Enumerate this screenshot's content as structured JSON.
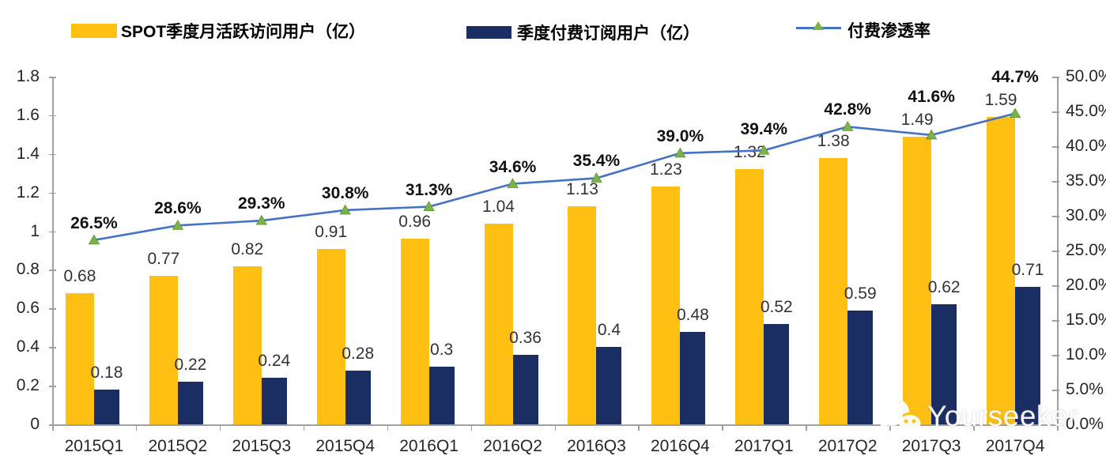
{
  "legend": {
    "items": [
      {
        "label": "SPOT季度月活跃访问用户（亿）",
        "type": "bar",
        "color": "#FFC013"
      },
      {
        "label": "季度付费订阅用户（亿）",
        "type": "bar",
        "color": "#1B2E63"
      },
      {
        "label": "付费渗透率",
        "type": "line",
        "color": "#4472C4",
        "marker_color": "#7CB347"
      }
    ]
  },
  "chart_data": {
    "type": "combo-bar-line",
    "categories": [
      "2015Q1",
      "2015Q2",
      "2015Q3",
      "2015Q4",
      "2016Q1",
      "2016Q2",
      "2016Q3",
      "2016Q4",
      "2017Q1",
      "2017Q2",
      "2017Q3",
      "2017Q4"
    ],
    "series": [
      {
        "name": "SPOT季度月活跃访问用户（亿）",
        "type": "bar",
        "axis": "left",
        "color": "#FFC013",
        "values": [
          0.68,
          0.77,
          0.82,
          0.91,
          0.96,
          1.04,
          1.13,
          1.23,
          1.32,
          1.38,
          1.49,
          1.59
        ],
        "labels": [
          "0.68",
          "0.77",
          "0.82",
          "0.91",
          "0.96",
          "1.04",
          "1.13",
          "1.23",
          "1.32",
          "1.38",
          "1.49",
          "1.59"
        ]
      },
      {
        "name": "季度付费订阅用户（亿）",
        "type": "bar",
        "axis": "left",
        "color": "#1B2E63",
        "values": [
          0.18,
          0.22,
          0.24,
          0.28,
          0.3,
          0.36,
          0.4,
          0.48,
          0.52,
          0.59,
          0.62,
          0.71
        ],
        "labels": [
          "0.18",
          "0.22",
          "0.24",
          "0.28",
          "0.3",
          "0.36",
          "0.4",
          "0.48",
          "0.52",
          "0.59",
          "0.62",
          "0.71"
        ]
      },
      {
        "name": "付费渗透率",
        "type": "line",
        "axis": "right",
        "color": "#4472C4",
        "marker": "triangle",
        "marker_color": "#7CB347",
        "values": [
          26.5,
          28.6,
          29.3,
          30.8,
          31.3,
          34.6,
          35.4,
          39.0,
          39.4,
          42.8,
          41.6,
          44.7
        ],
        "labels": [
          "26.5%",
          "28.6%",
          "29.3%",
          "30.8%",
          "31.3%",
          "34.6%",
          "35.4%",
          "39.0%",
          "39.4%",
          "42.8%",
          "41.6%",
          "44.7%"
        ]
      }
    ],
    "left_axis": {
      "min": 0,
      "max": 1.8,
      "step": 0.2,
      "tick_labels": [
        "0",
        "0.2",
        "0.4",
        "0.6",
        "0.8",
        "1",
        "1.2",
        "1.4",
        "1.6",
        "1.8"
      ]
    },
    "right_axis": {
      "min": 0,
      "max": 50,
      "step": 5,
      "tick_labels": [
        "0.0%",
        "5.0%",
        "10.0%",
        "15.0%",
        "20.0%",
        "25.0%",
        "30.0%",
        "35.0%",
        "40.0%",
        "45.0%",
        "50.0%"
      ]
    },
    "grid": false,
    "legend_position": "top"
  },
  "watermark": {
    "text": "Yourseeker",
    "icon": "wechat-icon"
  }
}
